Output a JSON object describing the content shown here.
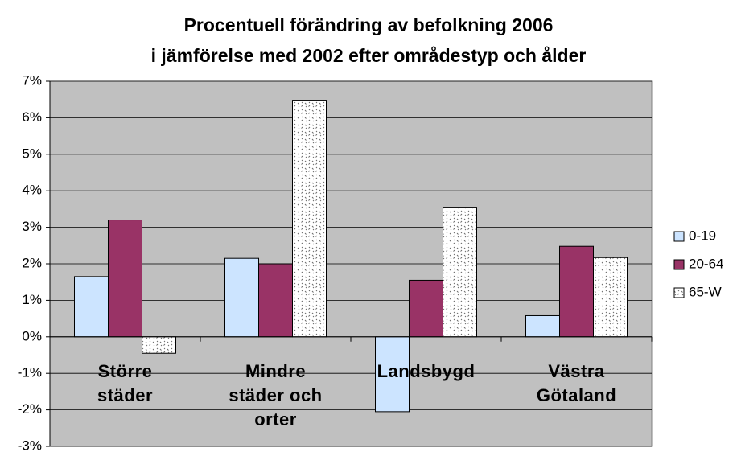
{
  "chart_data": {
    "type": "bar",
    "title": [
      "Procentuell förändring av befolkning 2006",
      "i jämförelse med 2002 efter områdestyp och ålder"
    ],
    "categories": [
      "Större städer",
      "Mindre städer och orter",
      "Landsbygd",
      "Västra Götaland"
    ],
    "series": [
      {
        "name": "0-19",
        "color": "#cce4ff",
        "values": [
          1.65,
          2.15,
          -2.05,
          0.58
        ]
      },
      {
        "name": "20-64",
        "color": "#993366",
        "values": [
          3.2,
          2.0,
          1.55,
          2.48
        ]
      },
      {
        "name": "65-W",
        "color": "#ffffff",
        "pattern": "dots",
        "values": [
          -0.45,
          6.48,
          3.55,
          2.17
        ]
      }
    ],
    "ylim": [
      -3,
      7
    ],
    "yticks": [
      {
        "value": -3,
        "label": "-3%"
      },
      {
        "value": -2,
        "label": "-2%"
      },
      {
        "value": -1,
        "label": "-1%"
      },
      {
        "value": 0,
        "label": "0%"
      },
      {
        "value": 1,
        "label": "1%"
      },
      {
        "value": 2,
        "label": "2%"
      },
      {
        "value": 3,
        "label": "3%"
      },
      {
        "value": 4,
        "label": "4%"
      },
      {
        "value": 5,
        "label": "5%"
      },
      {
        "value": 6,
        "label": "6%"
      },
      {
        "value": 7,
        "label": "7%"
      }
    ],
    "grid": true,
    "legend": "right",
    "background": "#c0c0c0"
  }
}
